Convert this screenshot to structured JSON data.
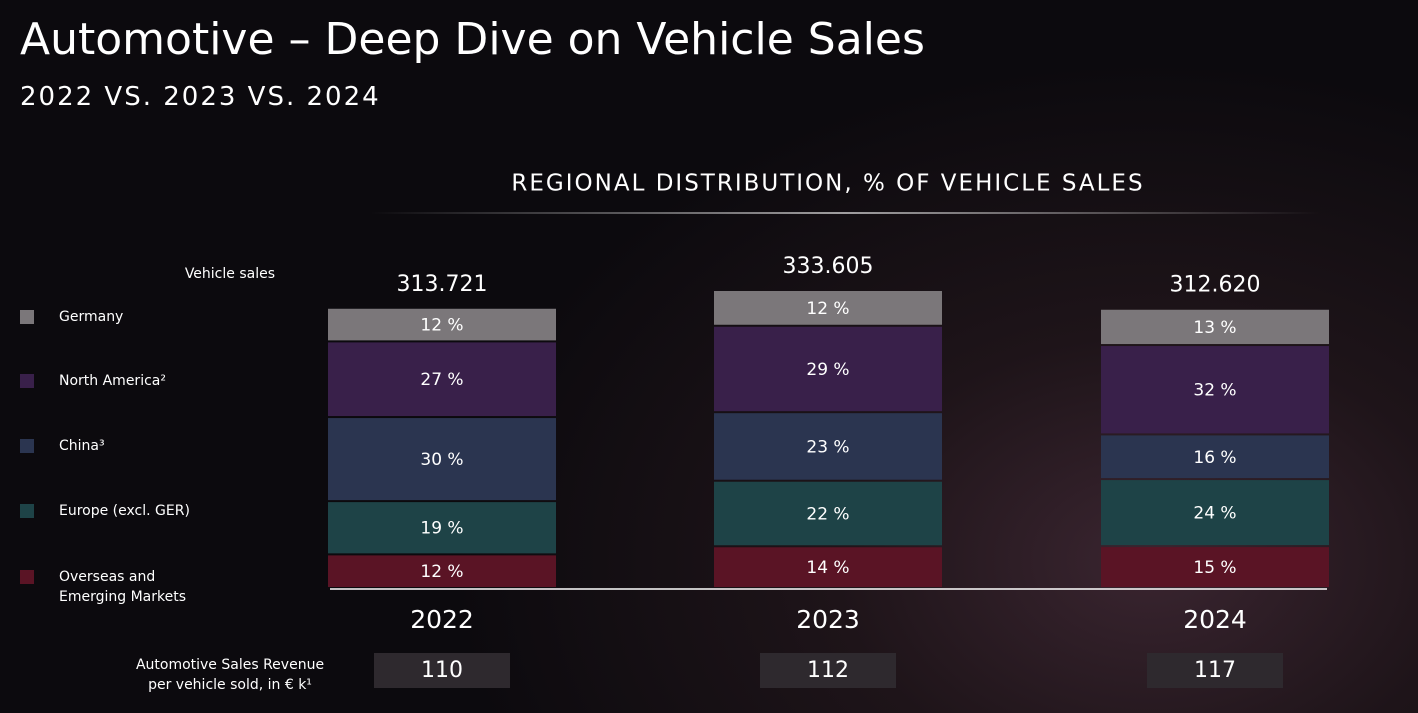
{
  "chart_data": {
    "type": "stacked-bar",
    "title": "Automotive – Deep Dive on Vehicle Sales",
    "subtitle": "2022 VS. 2023 VS. 2024",
    "chart_title": "REGIONAL DISTRIBUTION, % OF VEHICLE SALES",
    "categories": [
      "2022",
      "2023",
      "2024"
    ],
    "series": [
      {
        "name": "Germany",
        "color": "#7b777a",
        "values": [
          12,
          12,
          13
        ],
        "value_labels": [
          "12 %",
          "12 %",
          "13 %"
        ]
      },
      {
        "name": "North America²",
        "color": "#39204a",
        "values": [
          27,
          29,
          32
        ],
        "value_labels": [
          "27 %",
          "29 %",
          "32 %"
        ]
      },
      {
        "name": "China³",
        "color": "#2b3550",
        "values": [
          30,
          23,
          16
        ],
        "value_labels": [
          "30 %",
          "23 %",
          "16 %"
        ]
      },
      {
        "name": "Europe (excl. GER)",
        "color": "#1e4347",
        "values": [
          19,
          22,
          24
        ],
        "value_labels": [
          "19 %",
          "22 %",
          "24 %"
        ]
      },
      {
        "name": "Overseas and Emerging Markets",
        "color": "#5a1425",
        "values": [
          12,
          14,
          15
        ],
        "value_labels": [
          "12 %",
          "14 %",
          "15 %"
        ]
      }
    ],
    "sales": {
      "label": "Vehicle sales",
      "values": [
        313721,
        333605,
        312620
      ],
      "value_labels": [
        "313.721",
        "333.605",
        "312.620"
      ]
    },
    "revenue": {
      "label": "Automotive Sales Revenue per vehicle sold, in € k¹",
      "values": [
        110,
        112,
        117
      ]
    }
  }
}
